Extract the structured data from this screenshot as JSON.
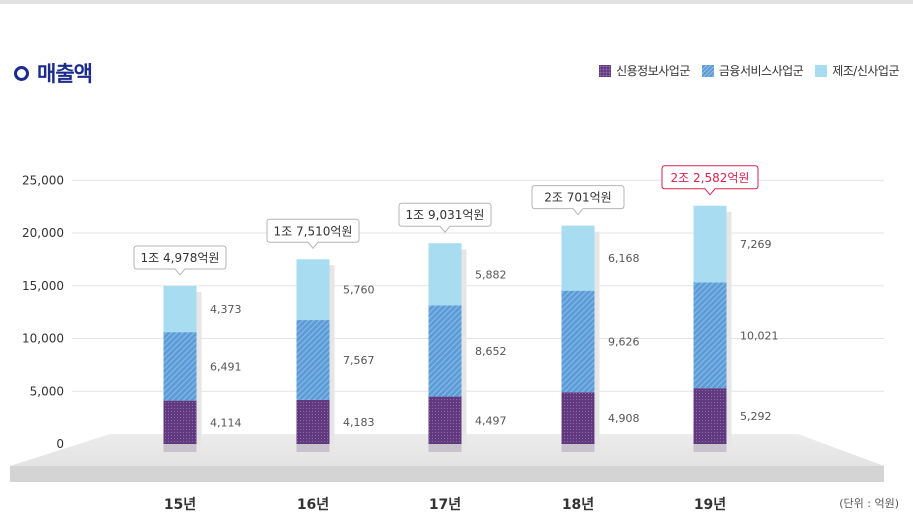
{
  "title": "매출액",
  "unit_label": "(단위 : 억원)",
  "colors": {
    "credit": "#61397f",
    "finance": "#5b9bd6",
    "manufacturing": "#a8dcf1",
    "highlight": "#d9224f",
    "title": "#1c2c8c"
  },
  "chart_data": {
    "type": "bar",
    "stacked": true,
    "title": "매출액",
    "categories": [
      "15년",
      "16년",
      "17년",
      "18년",
      "19년"
    ],
    "series": [
      {
        "name": "신용정보사업군",
        "key": "credit",
        "values": [
          4114,
          4183,
          4497,
          4908,
          5292
        ],
        "labels": [
          "4,114",
          "4,183",
          "4,497",
          "4,908",
          "5,292"
        ]
      },
      {
        "name": "금융서비스사업군",
        "key": "finance",
        "values": [
          6491,
          7567,
          8652,
          9626,
          10021
        ],
        "labels": [
          "6,491",
          "7,567",
          "8,652",
          "9,626",
          "10,021"
        ]
      },
      {
        "name": "제조/신사업군",
        "key": "manufacturing",
        "values": [
          4373,
          5760,
          5882,
          6168,
          7269
        ],
        "labels": [
          "4,373",
          "5,760",
          "5,882",
          "6,168",
          "7,269"
        ]
      }
    ],
    "totals": [
      "1조 4,978억원",
      "1조 7,510억원",
      "1조 9,031억원",
      "2조 701억원",
      "2조 2,582억원"
    ],
    "highlight_index": 4,
    "y_ticks": [
      0,
      5000,
      10000,
      15000,
      20000,
      25000
    ],
    "y_tick_labels": [
      "0",
      "5,000",
      "10,000",
      "15,000",
      "20,000",
      "25,000"
    ],
    "ylim": [
      0,
      25000
    ],
    "legend_position": "top-right",
    "grid": true
  }
}
